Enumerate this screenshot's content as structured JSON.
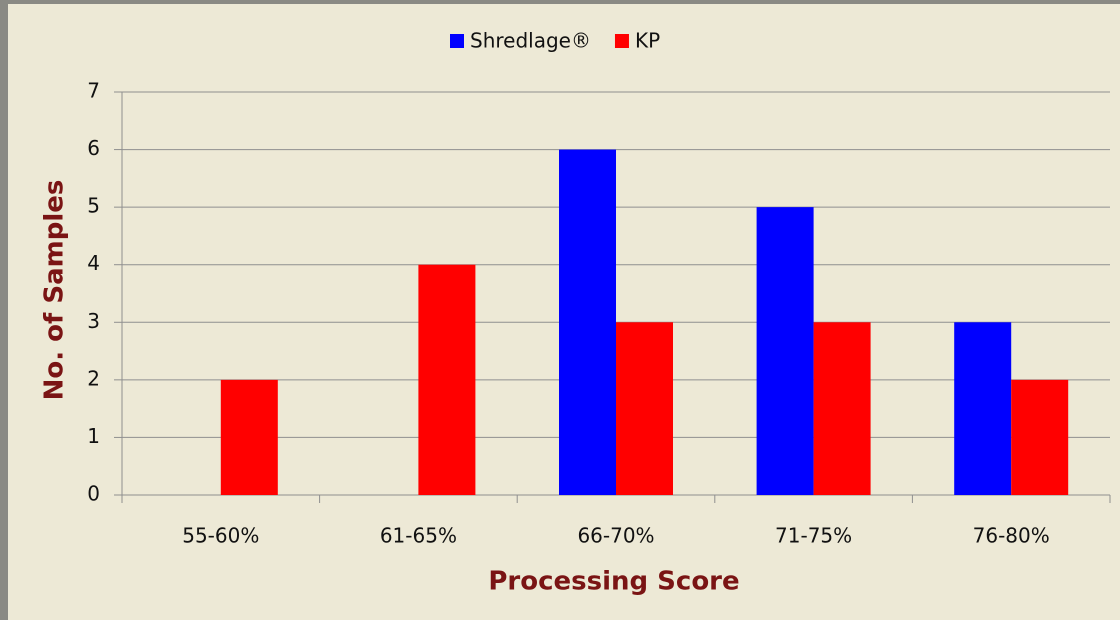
{
  "chart_data": {
    "type": "bar",
    "categories": [
      "55-60%",
      "61-65%",
      "66-70%",
      "71-75%",
      "76-80%"
    ],
    "series": [
      {
        "name": "Shredlage®",
        "color": "#0000ff",
        "values": [
          0,
          0,
          6,
          5,
          3
        ]
      },
      {
        "name": "KP",
        "color": "#ff0000",
        "values": [
          2,
          4,
          3,
          3,
          2
        ]
      }
    ],
    "x_label": "Processing Score",
    "y_label": "No. of Samples",
    "ylim": [
      0,
      7
    ],
    "yticks": [
      0,
      1,
      2,
      3,
      4,
      5,
      6,
      7
    ],
    "grid": true,
    "legend": "top"
  }
}
